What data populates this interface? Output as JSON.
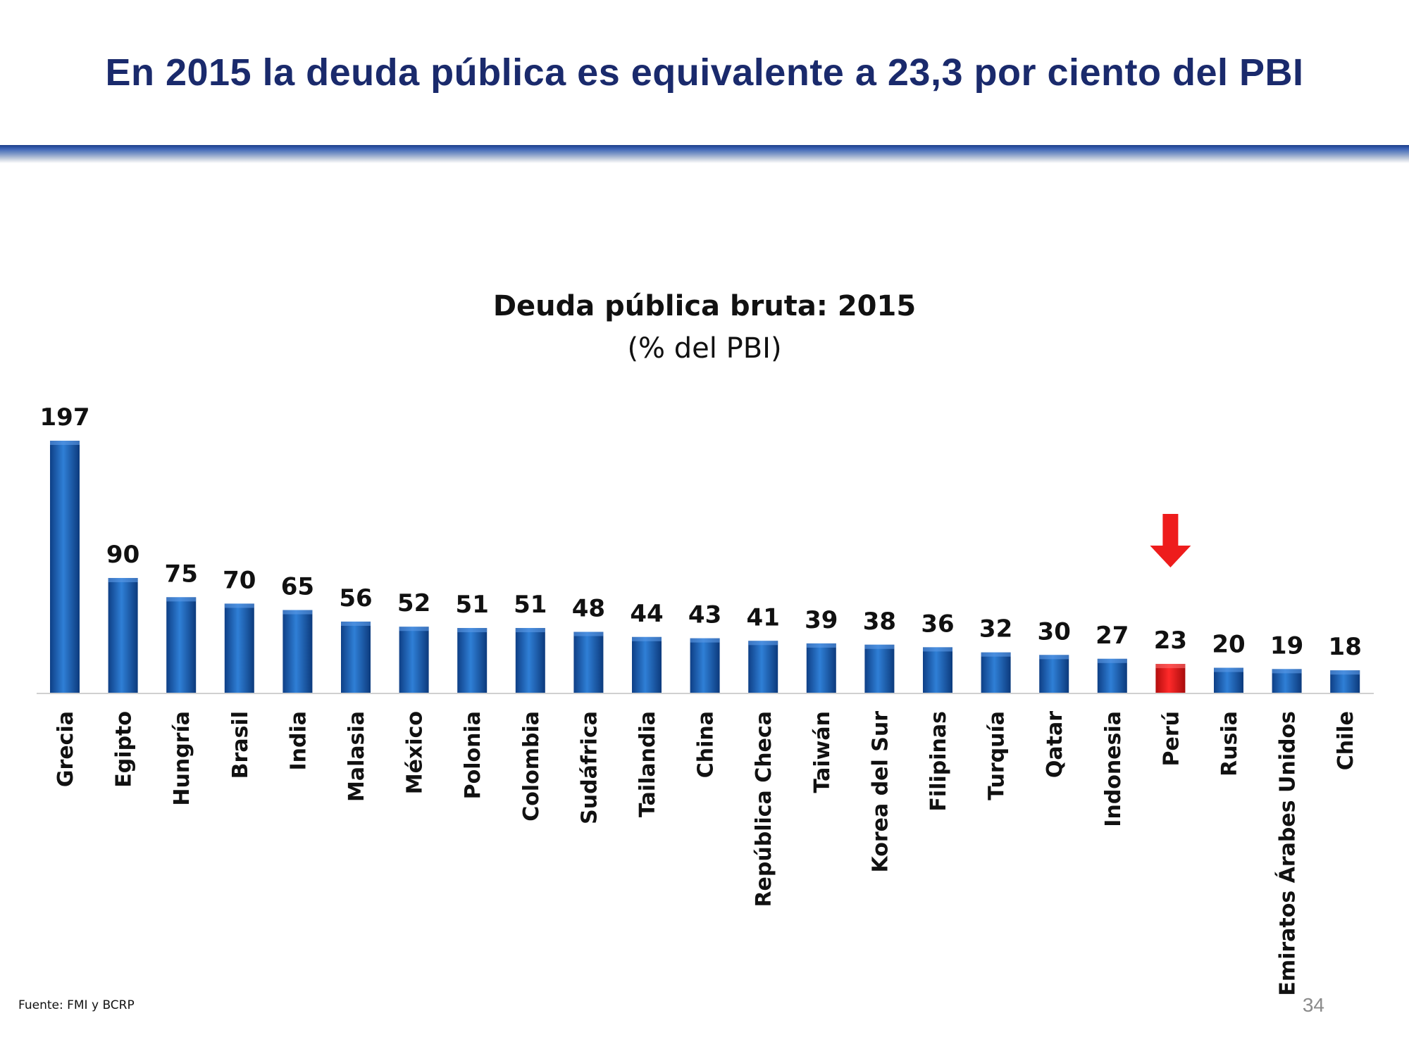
{
  "slide": {
    "title": "En 2015 la deuda pública es equivalente a 23,3 por ciento del PBI",
    "source": "Fuente: FMI y BCRP",
    "page_number": "34"
  },
  "colors": {
    "title": "#1a2a6c",
    "bar": "#1f6cc4",
    "bar_highlight": "#ee1c1c",
    "arrow": "#ee1c1c"
  },
  "chart_data": {
    "type": "bar",
    "title": "Deuda pública bruta: 2015",
    "subtitle": "(% del PBI)",
    "categories": [
      "Grecia",
      "Egipto",
      "Hungría",
      "Brasil",
      "India",
      "Malasia",
      "México",
      "Polonia",
      "Colombia",
      "Sudáfrica",
      "Tailandia",
      "China",
      "República Checa",
      "Taiwán",
      "Korea del Sur",
      "Filipinas",
      "Turquía",
      "Qatar",
      "Indonesia",
      "Perú",
      "Rusia",
      "Emiratos Árabes Unidos",
      "Chile"
    ],
    "values": [
      197,
      90,
      75,
      70,
      65,
      56,
      52,
      51,
      51,
      48,
      44,
      43,
      41,
      39,
      38,
      36,
      32,
      30,
      27,
      23,
      20,
      19,
      18
    ],
    "highlight": "Perú",
    "ylim": [
      0,
      197
    ],
    "grid": false,
    "legend": "none"
  }
}
